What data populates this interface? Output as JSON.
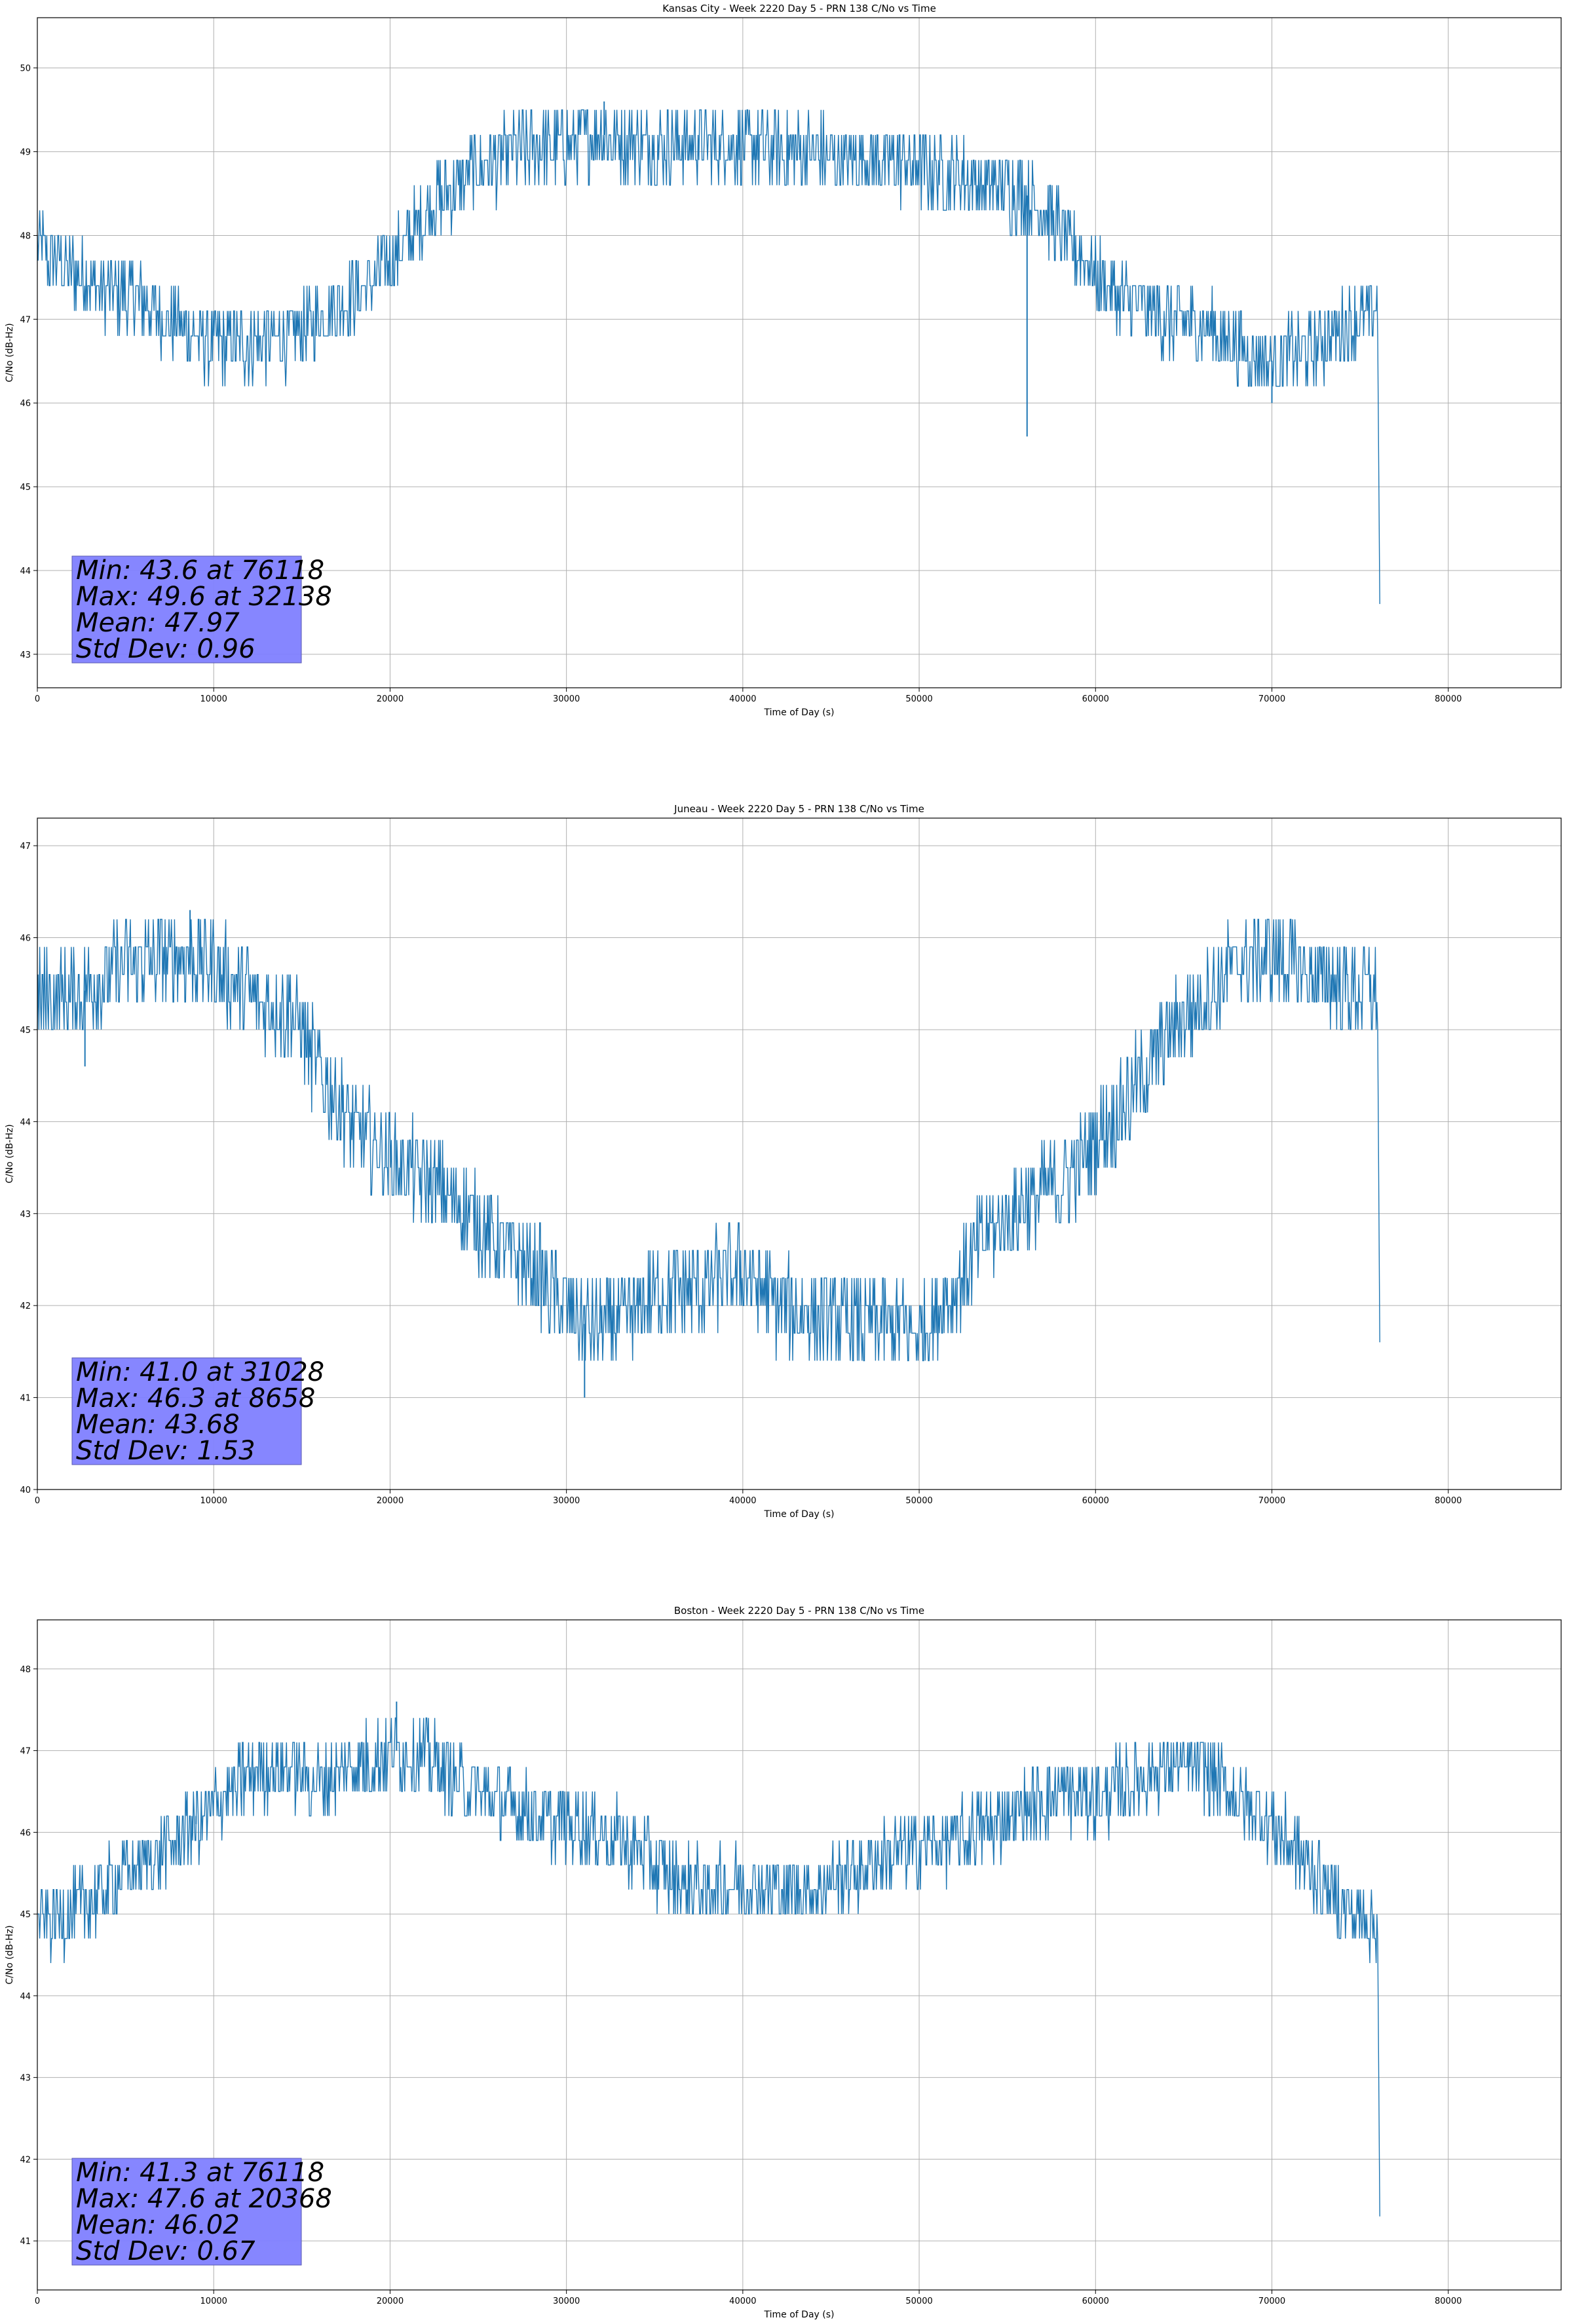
{
  "chart_data": [
    {
      "type": "line",
      "title": "Kansas City - Week 2220 Day 5 - PRN 138 C/No vs Time",
      "xlabel": "Time of Day (s)",
      "ylabel": "C/No (dB-Hz)",
      "xlim": [
        0,
        86400
      ],
      "ylim": [
        42.6,
        50.6
      ],
      "xticks": [
        0,
        10000,
        20000,
        30000,
        40000,
        50000,
        60000,
        70000,
        80000
      ],
      "yticks": [
        43,
        44,
        45,
        46,
        47,
        48,
        49,
        50
      ],
      "grid": true,
      "series": [
        {
          "color": "#1f77b4",
          "x": [
            0,
            1500,
            3500,
            6000,
            8000,
            10000,
            12500,
            14500,
            16500,
            18500,
            20500,
            22500,
            25000,
            27500,
            30000,
            32138,
            34000,
            36000,
            38000,
            40000,
            42000,
            44000,
            46000,
            48000,
            50000,
            52000,
            54000,
            56000,
            57500,
            59000,
            60500,
            62000,
            64000,
            66000,
            68000,
            70000,
            72000,
            74000,
            76000,
            76118
          ],
          "y": [
            47.9,
            47.6,
            47.4,
            47.2,
            46.9,
            46.7,
            46.7,
            46.8,
            47.1,
            47.4,
            47.8,
            48.4,
            48.8,
            49.0,
            49.1,
            49.2,
            49.1,
            49.1,
            49.1,
            49.1,
            49.0,
            49.0,
            48.9,
            48.9,
            48.8,
            48.7,
            48.6,
            48.5,
            48.2,
            47.8,
            47.4,
            47.2,
            47.0,
            46.9,
            46.7,
            46.5,
            46.6,
            46.9,
            47.1,
            43.6
          ],
          "band": 0.45,
          "spikes": [
            [
              56118,
              45.6
            ],
            [
              32138,
              49.6
            ],
            [
              70000,
              46.0
            ]
          ]
        }
      ],
      "annotation": [
        "Min: 43.6 at 76118",
        "Max: 49.6 at 32138",
        "Mean: 47.97",
        "Std Dev: 0.96"
      ],
      "annotation_color": "#8080ff"
    },
    {
      "type": "line",
      "title": "Juneau - Week 2220 Day 5 - PRN 138 C/No vs Time",
      "xlabel": "Time of Day (s)",
      "ylabel": "C/No (dB-Hz)",
      "xlim": [
        0,
        86400
      ],
      "ylim": [
        40.0,
        47.3
      ],
      "xticks": [
        0,
        10000,
        20000,
        30000,
        40000,
        50000,
        60000,
        70000,
        80000
      ],
      "yticks": [
        40,
        41,
        42,
        43,
        44,
        45,
        46,
        47
      ],
      "grid": true,
      "series": [
        {
          "color": "#1f77b4",
          "x": [
            0,
            2500,
            5000,
            8658,
            10500,
            12500,
            14500,
            16000,
            18000,
            20000,
            22000,
            24000,
            26000,
            28000,
            30000,
            31028,
            33000,
            35000,
            37000,
            39000,
            40000,
            42000,
            44000,
            46000,
            48000,
            50000,
            52000,
            54000,
            56000,
            58000,
            60000,
            62000,
            64000,
            66000,
            68000,
            70000,
            72000,
            74000,
            76000,
            76118
          ],
          "y": [
            45.3,
            45.4,
            45.7,
            45.8,
            45.6,
            45.3,
            45.2,
            44.5,
            43.9,
            43.6,
            43.4,
            43.1,
            42.7,
            42.4,
            42.0,
            41.8,
            41.8,
            42.1,
            42.2,
            42.3,
            42.4,
            42.0,
            41.9,
            41.8,
            41.8,
            41.7,
            42.2,
            42.8,
            43.1,
            43.3,
            43.8,
            44.3,
            44.9,
            45.3,
            45.7,
            45.8,
            45.6,
            45.5,
            45.4,
            41.6
          ],
          "band": 0.5,
          "spikes": [
            [
              8658,
              46.3
            ],
            [
              31028,
              41.0
            ],
            [
              2700,
              44.6
            ]
          ]
        }
      ],
      "annotation": [
        "Min: 41.0 at 31028",
        "Max: 46.3 at 8658",
        "Mean: 43.68",
        "Std Dev: 1.53"
      ],
      "annotation_color": "#8080ff"
    },
    {
      "type": "line",
      "title": "Boston - Week 2220 Day 5 - PRN 138 C/No vs Time",
      "xlabel": "Time of Day (s)",
      "ylabel": "C/No (dB-Hz)",
      "xlim": [
        0,
        86400
      ],
      "ylim": [
        40.4,
        48.6
      ],
      "xticks": [
        0,
        10000,
        20000,
        30000,
        40000,
        50000,
        60000,
        70000,
        80000
      ],
      "yticks": [
        41,
        42,
        43,
        44,
        45,
        46,
        47,
        48
      ],
      "grid": true,
      "series": [
        {
          "color": "#1f77b4",
          "x": [
            0,
            2000,
            4000,
            6000,
            8000,
            10000,
            12000,
            14000,
            16000,
            18000,
            20368,
            22000,
            24000,
            26000,
            28000,
            30000,
            32000,
            34000,
            36000,
            38000,
            40000,
            42000,
            44000,
            46000,
            48000,
            50000,
            52000,
            54000,
            56000,
            58000,
            60000,
            62000,
            64000,
            66000,
            68000,
            70000,
            72000,
            74000,
            76000,
            76118
          ],
          "y": [
            44.9,
            45.0,
            45.3,
            45.6,
            45.9,
            46.3,
            46.7,
            46.8,
            46.6,
            46.8,
            47.0,
            46.9,
            46.6,
            46.4,
            46.2,
            46.1,
            46.0,
            45.8,
            45.4,
            45.3,
            45.4,
            45.3,
            45.3,
            45.5,
            45.7,
            45.8,
            45.9,
            46.1,
            46.3,
            46.5,
            46.4,
            46.6,
            46.8,
            46.8,
            46.4,
            46.1,
            45.6,
            45.1,
            44.9,
            41.3
          ],
          "band": 0.45,
          "spikes": [
            [
              20368,
              47.6
            ],
            [
              9000,
              46.2
            ]
          ]
        }
      ],
      "annotation": [
        "Min: 41.3 at 76118",
        "Max: 47.6 at 20368",
        "Mean: 46.02",
        "Std Dev: 0.67"
      ],
      "annotation_color": "#8080ff"
    }
  ]
}
